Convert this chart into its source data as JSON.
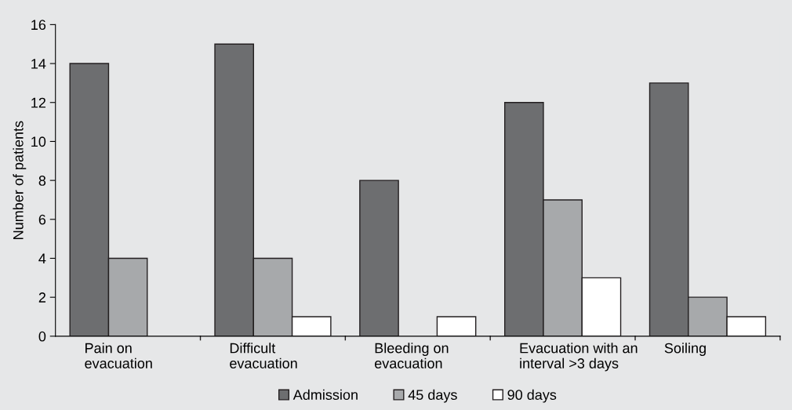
{
  "chart_data": {
    "type": "bar",
    "ylabel": "Number of patients",
    "categories": [
      "Pain on\nevacuation",
      "Difficult\nevacuation",
      "Bleeding on\nevacuation",
      "Evacuation with an\ninterval >3 days",
      "Soiling"
    ],
    "series": [
      {
        "name": "Admission",
        "color": "#6d6e70",
        "values": [
          14,
          15,
          8,
          12,
          13
        ]
      },
      {
        "name": "45 days",
        "color": "#a7a9ab",
        "values": [
          4,
          4,
          null,
          7,
          2
        ]
      },
      {
        "name": "90 days",
        "color": "#ffffff",
        "values": [
          null,
          1,
          1,
          3,
          1
        ]
      }
    ],
    "ylim": [
      0,
      16
    ],
    "yticks": [
      0,
      2,
      4,
      6,
      8,
      10,
      12,
      14,
      16
    ],
    "grid": false,
    "legend": "bottom"
  }
}
